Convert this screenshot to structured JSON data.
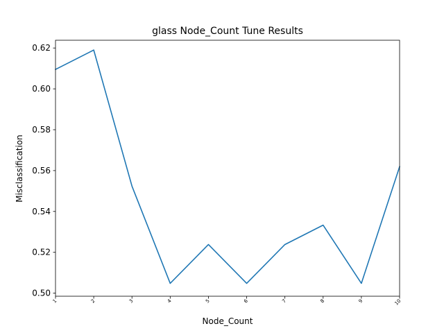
{
  "chart_data": {
    "type": "line",
    "title": "glass Node_Count Tune Results",
    "xlabel": "Node_Count",
    "ylabel": "Misclassification",
    "x": [
      1,
      2,
      3,
      4,
      5,
      6,
      7,
      8,
      9,
      10
    ],
    "series": [
      {
        "values": [
          0.6095,
          0.619,
          0.5524,
          0.5048,
          0.5238,
          0.5048,
          0.5238,
          0.5333,
          0.5048,
          0.5619
        ],
        "color": "#1f77b4"
      }
    ],
    "xlim": [
      1,
      10
    ],
    "ylim": [
      0.4985,
      0.6238
    ],
    "xticks": [
      "1",
      "2",
      "3",
      "4",
      "5",
      "6",
      "7",
      "8",
      "9",
      "10"
    ],
    "yticks": [
      "0.50",
      "0.52",
      "0.54",
      "0.56",
      "0.58",
      "0.60",
      "0.62"
    ],
    "grid": false,
    "legend": "none"
  }
}
